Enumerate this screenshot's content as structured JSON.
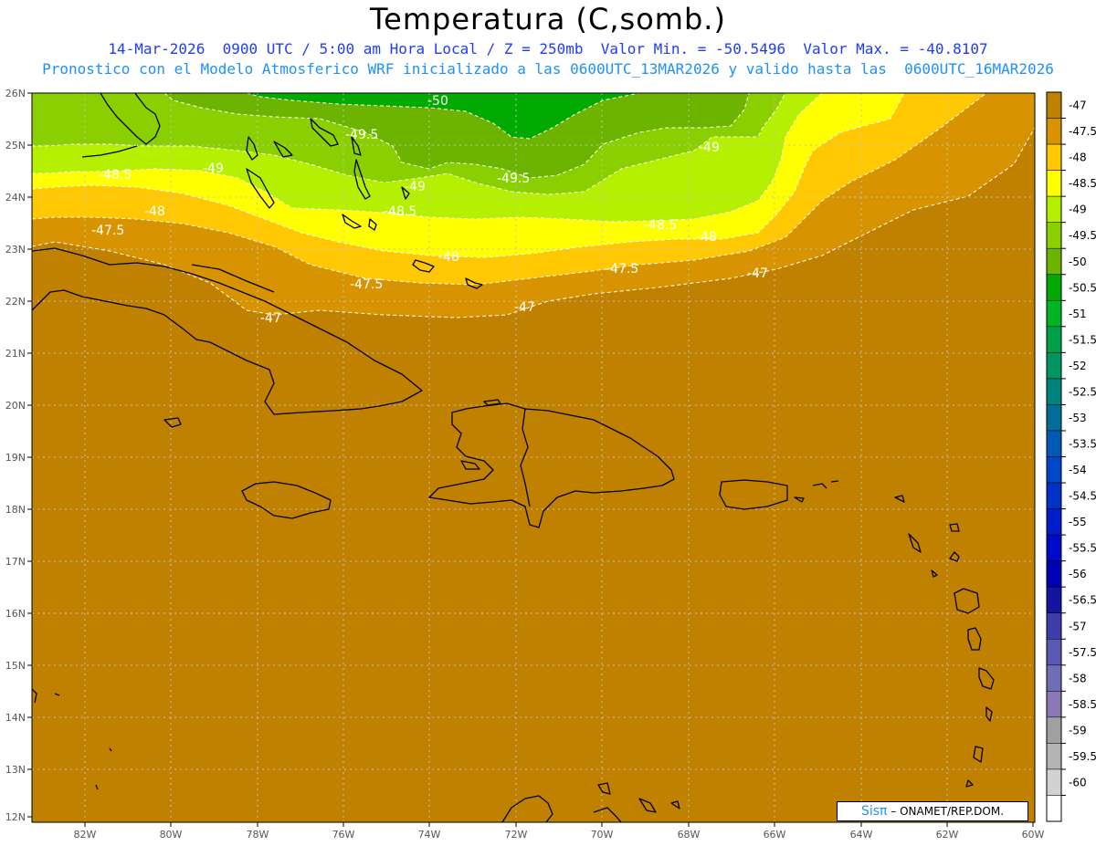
{
  "title": "Temperatura (C,somb.)",
  "subtitle_line1": "14-Mar-2026  0900 UTC / 5:00 am Hora Local / Z = 250mb  Valor Min. = -50.5496  Valor Max. = -40.8107",
  "subtitle_line2": "Pronostico con el Modelo Atmosferico WRF inicializado a las 0600UTC_13MAR2026 y valido hasta las  0600UTC_16MAR2026",
  "credit": {
    "brand": "Sisπ",
    "text": " – ONAMET/REP.DOM."
  },
  "map": {
    "lon_range": [
      -83,
      -60
    ],
    "lat_range": [
      12,
      26
    ],
    "lat_labels": [
      "26N",
      "25N",
      "24N",
      "23N",
      "22N",
      "21N",
      "20N",
      "19N",
      "18N",
      "17N",
      "16N",
      "15N",
      "14N",
      "13N",
      "12N"
    ],
    "lon_labels": [
      "82W",
      "80W",
      "78W",
      "76W",
      "74W",
      "72W",
      "70W",
      "68W",
      "66W",
      "64W",
      "62W",
      "60W"
    ],
    "contour_labels": [
      "-50",
      "-49.5",
      "-49",
      "-49.5",
      "-49",
      "-49",
      "-48.5",
      "-48.5",
      "-48.5",
      "-48",
      "-48",
      "-48",
      "-47.5",
      "-47.5",
      "-47.5",
      "-47",
      "-47",
      "-47"
    ]
  },
  "colorbar": {
    "labels": [
      "-47",
      "-47.5",
      "-48",
      "-48.5",
      "-49",
      "-49.5",
      "-50",
      "-50.5",
      "-51",
      "-51.5",
      "-52",
      "-52.5",
      "-53",
      "-53.5",
      "-54",
      "-54.5",
      "-55",
      "-55.5",
      "-56",
      "-56.5",
      "-57",
      "-57.5",
      "-58",
      "-58.5",
      "-59",
      "-59.5",
      "-60"
    ],
    "colors": [
      "#c08000",
      "#d89400",
      "#ffc800",
      "#ffff00",
      "#b4f000",
      "#8ad000",
      "#6cb400",
      "#00aa00",
      "#00b428",
      "#00a046",
      "#009664",
      "#00827d",
      "#006e96",
      "#005ab4",
      "#0046c8",
      "#0032c8",
      "#001ec8",
      "#000ac8",
      "#0000b4",
      "#1414a0",
      "#3c3caa",
      "#5a5ab4",
      "#6e6eb4",
      "#8c78b4",
      "#a0a0a0",
      "#b4b4b4",
      "#d2d2d2",
      "#ffffff"
    ]
  },
  "colors": {
    "ocean_base": "#c08000",
    "band_47_5": "#d89400",
    "band_48": "#ffc800",
    "band_48_5": "#ffff00",
    "band_49": "#b4f000",
    "band_49_5": "#8ad000",
    "band_50": "#6cb400",
    "band_50_5": "#00aa00",
    "grid": "#c0c0c0",
    "coast": "#000000",
    "contour": "#ffffff",
    "subtitle1": "#1e3cff",
    "subtitle2": "#1e90ff"
  }
}
